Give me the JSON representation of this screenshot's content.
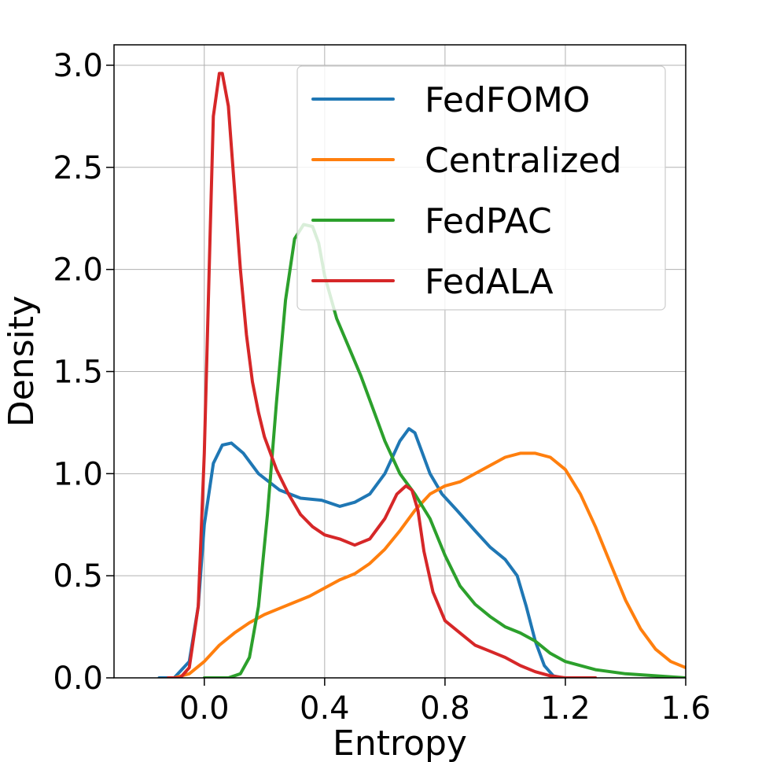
{
  "chart_data": {
    "type": "line",
    "title": "",
    "xlabel": "Entropy",
    "ylabel": "Density",
    "xlim": [
      -0.3,
      1.6
    ],
    "ylim": [
      0,
      3.1
    ],
    "grid": true,
    "legend_position": "upper-right",
    "xticks": [
      0.0,
      0.4,
      0.8,
      1.2,
      1.6
    ],
    "xtick_labels": [
      "0.0",
      "0.4",
      "0.8",
      "1.2",
      "1.6"
    ],
    "yticks": [
      0.0,
      0.5,
      1.0,
      1.5,
      2.0,
      2.5,
      3.0
    ],
    "ytick_labels": [
      "0.0",
      "0.5",
      "1.0",
      "1.5",
      "2.0",
      "2.5",
      "3.0"
    ],
    "series": [
      {
        "name": "FedFOMO",
        "color": "#1f77b4",
        "x": [
          -0.15,
          -0.1,
          -0.05,
          -0.02,
          0.0,
          0.03,
          0.06,
          0.09,
          0.13,
          0.18,
          0.25,
          0.32,
          0.39,
          0.45,
          0.5,
          0.55,
          0.6,
          0.65,
          0.68,
          0.7,
          0.72,
          0.75,
          0.79,
          0.84,
          0.9,
          0.95,
          1.0,
          1.04,
          1.07,
          1.1,
          1.13,
          1.16,
          1.19,
          1.22,
          1.25
        ],
        "y": [
          0.0,
          0.0,
          0.08,
          0.35,
          0.75,
          1.05,
          1.14,
          1.15,
          1.1,
          1.0,
          0.92,
          0.88,
          0.87,
          0.84,
          0.86,
          0.9,
          1.0,
          1.16,
          1.22,
          1.2,
          1.12,
          1.0,
          0.9,
          0.82,
          0.72,
          0.64,
          0.58,
          0.5,
          0.35,
          0.18,
          0.06,
          0.01,
          0.0,
          0.0,
          0.0
        ]
      },
      {
        "name": "Centralized",
        "color": "#ff7f0e",
        "x": [
          -0.1,
          -0.05,
          0.0,
          0.05,
          0.1,
          0.15,
          0.2,
          0.25,
          0.3,
          0.35,
          0.4,
          0.45,
          0.5,
          0.55,
          0.6,
          0.65,
          0.7,
          0.75,
          0.8,
          0.85,
          0.9,
          0.95,
          1.0,
          1.05,
          1.1,
          1.15,
          1.2,
          1.25,
          1.3,
          1.35,
          1.4,
          1.45,
          1.5,
          1.55,
          1.6
        ],
        "y": [
          0.0,
          0.02,
          0.08,
          0.16,
          0.22,
          0.27,
          0.31,
          0.34,
          0.37,
          0.4,
          0.44,
          0.48,
          0.51,
          0.56,
          0.63,
          0.72,
          0.82,
          0.9,
          0.94,
          0.96,
          1.0,
          1.04,
          1.08,
          1.1,
          1.1,
          1.08,
          1.02,
          0.9,
          0.74,
          0.56,
          0.38,
          0.24,
          0.14,
          0.08,
          0.05
        ]
      },
      {
        "name": "FedPAC",
        "color": "#2ca02c",
        "x": [
          0.0,
          0.08,
          0.12,
          0.15,
          0.18,
          0.21,
          0.24,
          0.27,
          0.3,
          0.33,
          0.36,
          0.38,
          0.4,
          0.44,
          0.48,
          0.52,
          0.56,
          0.6,
          0.65,
          0.7,
          0.75,
          0.8,
          0.85,
          0.9,
          0.95,
          1.0,
          1.05,
          1.1,
          1.15,
          1.2,
          1.3,
          1.4,
          1.5,
          1.6
        ],
        "y": [
          0.0,
          0.0,
          0.02,
          0.1,
          0.35,
          0.8,
          1.35,
          1.85,
          2.15,
          2.22,
          2.21,
          2.13,
          1.97,
          1.76,
          1.62,
          1.48,
          1.32,
          1.16,
          1.0,
          0.9,
          0.78,
          0.6,
          0.45,
          0.36,
          0.3,
          0.25,
          0.22,
          0.18,
          0.12,
          0.08,
          0.04,
          0.02,
          0.01,
          0.0
        ]
      },
      {
        "name": "FedALA",
        "color": "#d62728",
        "x": [
          -0.12,
          -0.08,
          -0.05,
          -0.02,
          0.0,
          0.02,
          0.03,
          0.05,
          0.06,
          0.08,
          0.1,
          0.12,
          0.14,
          0.16,
          0.18,
          0.2,
          0.24,
          0.28,
          0.32,
          0.36,
          0.4,
          0.45,
          0.5,
          0.55,
          0.6,
          0.64,
          0.67,
          0.69,
          0.71,
          0.73,
          0.76,
          0.8,
          0.85,
          0.9,
          0.95,
          1.0,
          1.05,
          1.1,
          1.15,
          1.2,
          1.3
        ],
        "y": [
          0.0,
          0.0,
          0.05,
          0.35,
          1.1,
          2.2,
          2.75,
          2.96,
          2.96,
          2.8,
          2.4,
          2.0,
          1.68,
          1.45,
          1.3,
          1.18,
          1.02,
          0.9,
          0.8,
          0.74,
          0.7,
          0.68,
          0.65,
          0.68,
          0.78,
          0.9,
          0.94,
          0.92,
          0.82,
          0.62,
          0.42,
          0.28,
          0.22,
          0.16,
          0.13,
          0.1,
          0.06,
          0.03,
          0.01,
          0.0,
          0.0
        ]
      }
    ]
  }
}
